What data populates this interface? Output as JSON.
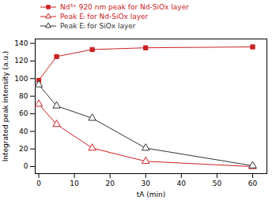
{
  "chart_data": {
    "type": "line",
    "xlabel": "tA (min)",
    "ylabel": "Integrated peak intensity (a.u.)",
    "xlim": [
      -1,
      64
    ],
    "ylim": [
      -8,
      145
    ],
    "xticks": [
      0,
      10,
      20,
      30,
      40,
      50,
      60
    ],
    "yticks": [
      0,
      20,
      40,
      60,
      80,
      100,
      120,
      140
    ],
    "series": [
      {
        "name": "Nd³⁺ 920 nm peak for Nd-SiOx layer",
        "color": "#cc2222",
        "marker": "square",
        "x": [
          0,
          5,
          15,
          30,
          60
        ],
        "values": [
          98,
          125,
          133,
          135,
          136
        ]
      },
      {
        "name": "Peak Eₗ for Nd-SiOx layer",
        "color": "#cc2222",
        "marker": "triangle-open",
        "x": [
          0,
          5,
          15,
          30,
          60
        ],
        "values": [
          71,
          48,
          21,
          6,
          0
        ]
      },
      {
        "name": "Peak Eₗ for SiOx layer",
        "color": "#333333",
        "marker": "triangle-open",
        "x": [
          0,
          5,
          15,
          30,
          60
        ],
        "values": [
          93,
          69,
          55,
          21,
          1
        ]
      }
    ]
  }
}
